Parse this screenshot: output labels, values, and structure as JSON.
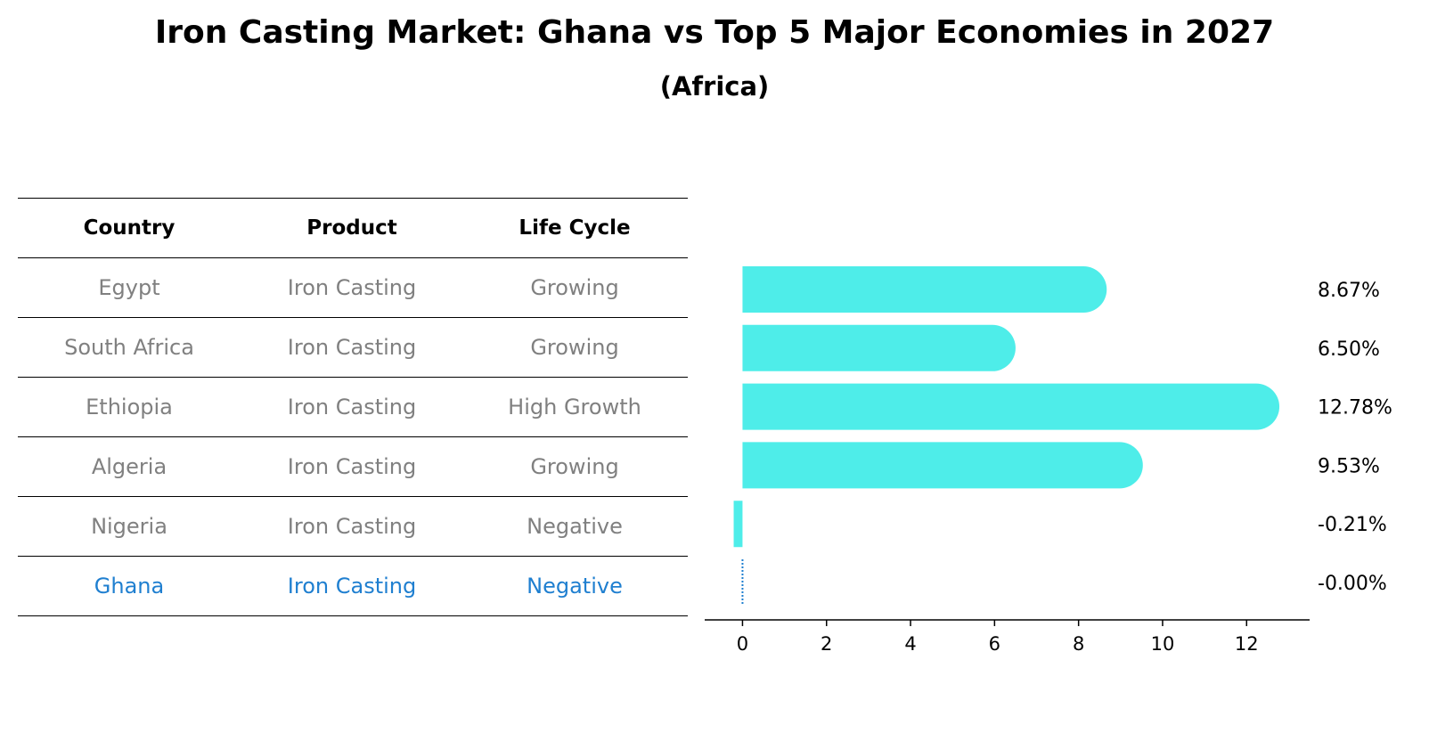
{
  "chart_data": {
    "type": "bar",
    "title": "Iron Casting Market: Ghana vs Top 5 Major Economies in 2027",
    "subtitle": "(Africa)",
    "table": {
      "headers": [
        "Country",
        "Product",
        "Life Cycle"
      ],
      "rows": [
        [
          "Egypt",
          "Iron Casting",
          "Growing"
        ],
        [
          "South Africa",
          "Iron Casting",
          "Growing"
        ],
        [
          "Ethiopia",
          "Iron Casting",
          "High Growth"
        ],
        [
          "Algeria",
          "Iron Casting",
          "Growing"
        ],
        [
          "Nigeria",
          "Iron Casting",
          "Negative"
        ],
        [
          "Ghana",
          "Iron Casting",
          "Negative"
        ]
      ],
      "highlight": "Ghana"
    },
    "categories": [
      "Egypt",
      "South Africa",
      "Ethiopia",
      "Algeria",
      "Nigeria",
      "Ghana"
    ],
    "values": [
      8.67,
      6.5,
      12.78,
      9.53,
      -0.21,
      -0.0
    ],
    "value_labels": [
      "8.67%",
      "6.50%",
      "12.78%",
      "9.53%",
      "-0.21%",
      "-0.00%"
    ],
    "xticks": [
      0,
      2,
      4,
      6,
      8,
      10,
      12
    ],
    "xlim": [
      -0.9,
      13.5
    ],
    "xlabel": "",
    "ylabel": "",
    "colors": {
      "bar": "#4eede9",
      "highlight": "#1f7fd0"
    }
  }
}
